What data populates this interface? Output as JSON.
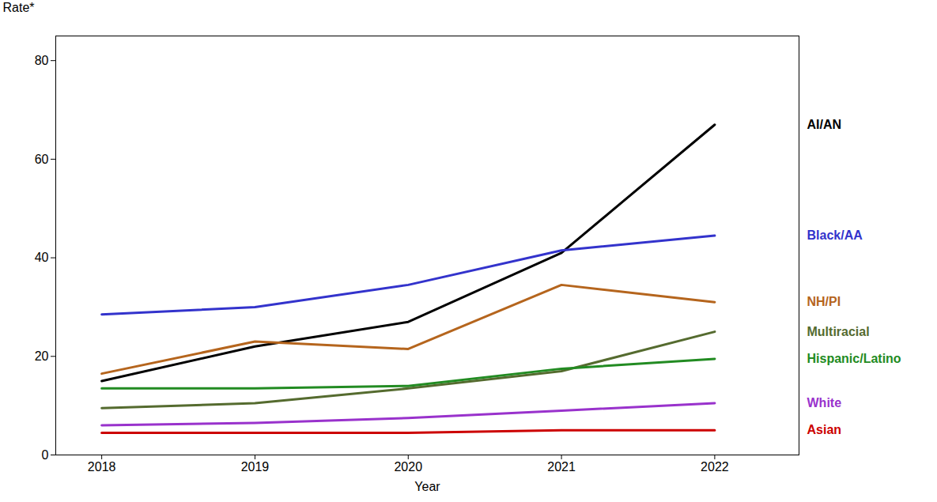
{
  "chart_data": {
    "type": "line",
    "xlabel": "Year",
    "ylabel": "Rate*",
    "x": [
      2018,
      2019,
      2020,
      2021,
      2022
    ],
    "series": [
      {
        "name": "AI/AN",
        "color": "#000000",
        "values": [
          15.0,
          22.0,
          27.0,
          41.0,
          67.0
        ]
      },
      {
        "name": "Black/AA",
        "color": "#3333cc",
        "values": [
          28.5,
          30.0,
          34.5,
          41.5,
          44.5
        ]
      },
      {
        "name": "NH/PI",
        "color": "#b5651d",
        "values": [
          16.5,
          23.0,
          21.5,
          34.5,
          31.0
        ]
      },
      {
        "name": "Multiracial",
        "color": "#556b2f",
        "values": [
          9.5,
          10.5,
          13.5,
          17.0,
          25.0
        ]
      },
      {
        "name": "Hispanic/Latino",
        "color": "#228b22",
        "values": [
          13.5,
          13.5,
          14.0,
          17.5,
          19.5
        ]
      },
      {
        "name": "White",
        "color": "#9932cc",
        "values": [
          6.0,
          6.5,
          7.5,
          9.0,
          10.5
        ]
      },
      {
        "name": "Asian",
        "color": "#cc0000",
        "values": [
          4.5,
          4.5,
          4.5,
          5.0,
          5.0
        ]
      }
    ],
    "xlim": [
      2017.7,
      2022.55
    ],
    "xticks": [
      2018,
      2019,
      2020,
      2021,
      2022
    ],
    "ylim": [
      0,
      85
    ],
    "yticks": [
      0,
      20,
      40,
      60,
      80
    ],
    "grid": false
  }
}
